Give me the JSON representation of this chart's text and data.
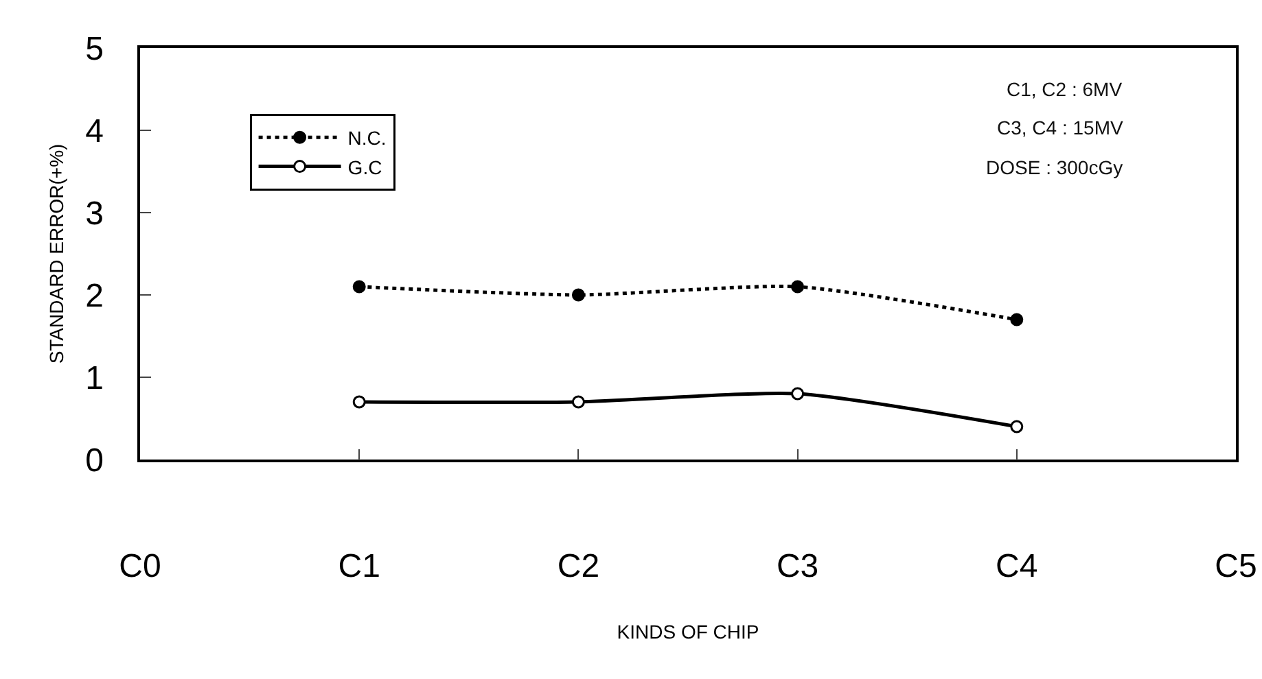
{
  "chart_data": {
    "type": "line",
    "xlabel": "KINDS OF CHIP",
    "ylabel": "STANDARD ERROR(+%)",
    "categories": [
      "C0",
      "C1",
      "C2",
      "C3",
      "C4",
      "C5"
    ],
    "series": [
      {
        "name": "N.C.",
        "color": "#000000",
        "line_style": "dotted",
        "values": [
          null,
          2.1,
          2.0,
          2.1,
          1.7,
          null
        ]
      },
      {
        "name": "G.C",
        "color": "#000000",
        "line_style": "solid",
        "values": [
          null,
          0.7,
          0.7,
          0.8,
          0.4,
          null
        ]
      }
    ],
    "ylim": [
      0,
      5
    ],
    "yticks": [
      0,
      1,
      2,
      3,
      4,
      5
    ],
    "grid": false,
    "legend": "top left",
    "marker": "circle",
    "annotations": [
      "C1, C2 : 6MV",
      "C3, C4 : 15MV",
      "DOSE : 300cGy"
    ]
  }
}
